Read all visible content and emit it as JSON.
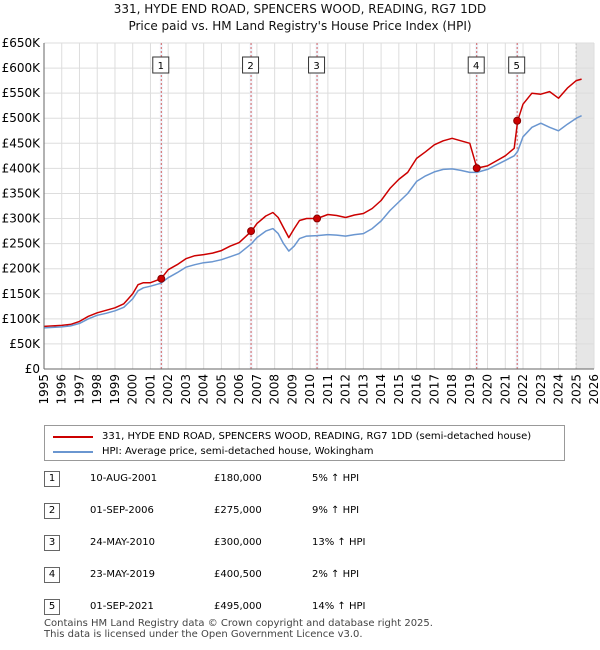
{
  "chart_data": {
    "type": "line",
    "title": "331, HYDE END ROAD, SPENCERS WOOD, READING, RG7 1DD",
    "subtitle": "Price paid vs. HM Land Registry's House Price Index (HPI)",
    "xlim": [
      1995,
      2026
    ],
    "ylim": [
      0,
      650000
    ],
    "x_ticks": [
      1995,
      1996,
      1997,
      1998,
      1999,
      2000,
      2001,
      2002,
      2003,
      2004,
      2005,
      2006,
      2007,
      2008,
      2009,
      2010,
      2011,
      2012,
      2013,
      2014,
      2015,
      2016,
      2017,
      2018,
      2019,
      2020,
      2021,
      2022,
      2023,
      2024,
      2025,
      2026
    ],
    "y_ticks": [
      0,
      50000,
      100000,
      150000,
      200000,
      250000,
      300000,
      350000,
      400000,
      450000,
      500000,
      550000,
      600000,
      650000
    ],
    "y_tick_labels": [
      "£0",
      "£50K",
      "£100K",
      "£150K",
      "£200K",
      "£250K",
      "£300K",
      "£350K",
      "£400K",
      "£450K",
      "£500K",
      "£550K",
      "£600K",
      "£650K"
    ],
    "series": [
      {
        "name": "331, HYDE END ROAD, SPENCERS WOOD, READING, RG7 1DD (semi-detached house)",
        "color": "#cc0000",
        "x": [
          1995,
          1995.5,
          1996,
          1996.5,
          1997,
          1997.5,
          1998,
          1998.5,
          1999,
          1999.5,
          2000,
          2000.3,
          2000.6,
          2001,
          2001.6,
          2002,
          2002.5,
          2003,
          2003.5,
          2004,
          2004.5,
          2005,
          2005.5,
          2006,
          2006.7,
          2007,
          2007.5,
          2007.9,
          2008.2,
          2008.5,
          2008.8,
          2009.1,
          2009.4,
          2009.8,
          2010.4,
          2011,
          2011.5,
          2012,
          2012.5,
          2013,
          2013.5,
          2014,
          2014.5,
          2015,
          2015.5,
          2016,
          2016.5,
          2017,
          2017.5,
          2018,
          2018.5,
          2019,
          2019.4,
          2020,
          2020.5,
          2021,
          2021.5,
          2021.7,
          2022,
          2022.5,
          2023,
          2023.5,
          2024,
          2024.5,
          2025,
          2025.3
        ],
        "y": [
          85000,
          86000,
          87000,
          89000,
          95000,
          105000,
          112000,
          117000,
          122000,
          130000,
          150000,
          168000,
          172000,
          172000,
          180000,
          198000,
          208000,
          220000,
          226000,
          228000,
          231000,
          236000,
          245000,
          252000,
          275000,
          290000,
          305000,
          312000,
          302000,
          282000,
          262000,
          280000,
          296000,
          300000,
          300000,
          308000,
          306000,
          302000,
          307000,
          310000,
          320000,
          336000,
          360000,
          378000,
          392000,
          420000,
          433000,
          447000,
          455000,
          460000,
          455000,
          450000,
          400500,
          405000,
          415000,
          425000,
          440000,
          495000,
          528000,
          550000,
          548000,
          553000,
          540000,
          560000,
          575000,
          578000
        ]
      },
      {
        "name": "HPI: Average price, semi-detached house, Wokingham",
        "color": "#6a96d0",
        "x": [
          1995,
          1995.5,
          1996,
          1996.5,
          1997,
          1997.5,
          1998,
          1998.5,
          1999,
          1999.5,
          2000,
          2000.3,
          2000.6,
          2001,
          2001.6,
          2002,
          2002.5,
          2003,
          2003.5,
          2004,
          2004.5,
          2005,
          2005.5,
          2006,
          2006.7,
          2007,
          2007.5,
          2007.9,
          2008.2,
          2008.5,
          2008.8,
          2009.1,
          2009.4,
          2009.8,
          2010.4,
          2011,
          2011.5,
          2012,
          2012.5,
          2013,
          2013.5,
          2014,
          2014.5,
          2015,
          2015.5,
          2016,
          2016.5,
          2017,
          2017.5,
          2018,
          2018.5,
          2019,
          2019.4,
          2020,
          2020.5,
          2021,
          2021.5,
          2021.7,
          2022,
          2022.5,
          2023,
          2023.5,
          2024,
          2024.5,
          2025,
          2025.3
        ],
        "y": [
          82000,
          83000,
          84000,
          86000,
          91000,
          100000,
          107000,
          111000,
          116000,
          123000,
          140000,
          156000,
          162000,
          165000,
          171000,
          182000,
          192000,
          203000,
          208000,
          212000,
          214000,
          218000,
          224000,
          230000,
          250000,
          262000,
          275000,
          280000,
          270000,
          250000,
          235000,
          245000,
          260000,
          265000,
          266000,
          268000,
          267000,
          265000,
          268000,
          270000,
          280000,
          295000,
          316000,
          333000,
          350000,
          374000,
          385000,
          393000,
          398000,
          399000,
          396000,
          392000,
          392000,
          398000,
          407000,
          416000,
          425000,
          434000,
          463000,
          482000,
          490000,
          482000,
          475000,
          488000,
          500000,
          505000
        ]
      }
    ],
    "sales": [
      {
        "num": "1",
        "x": 2001.61,
        "price": 180000
      },
      {
        "num": "2",
        "x": 2006.67,
        "price": 275000
      },
      {
        "num": "3",
        "x": 2010.39,
        "price": 300000
      },
      {
        "num": "4",
        "x": 2019.39,
        "price": 400500
      },
      {
        "num": "5",
        "x": 2021.67,
        "price": 495000
      }
    ],
    "future_shade_start": 2025.0
  },
  "legend": {
    "property_label": "331, HYDE END ROAD, SPENCERS WOOD, READING, RG7 1DD (semi-detached house)",
    "hpi_label": "HPI: Average price, semi-detached house, Wokingham",
    "property_color": "#cc0000",
    "hpi_color": "#6a96d0"
  },
  "table": [
    {
      "num": "1",
      "date": "10-AUG-2001",
      "price": "£180,000",
      "hpi": "5% ↑ HPI"
    },
    {
      "num": "2",
      "date": "01-SEP-2006",
      "price": "£275,000",
      "hpi": "9% ↑ HPI"
    },
    {
      "num": "3",
      "date": "24-MAY-2010",
      "price": "£300,000",
      "hpi": "13% ↑ HPI"
    },
    {
      "num": "4",
      "date": "23-MAY-2019",
      "price": "£400,500",
      "hpi": "2% ↑ HPI"
    },
    {
      "num": "5",
      "date": "01-SEP-2021",
      "price": "£495,000",
      "hpi": "14% ↑ HPI"
    }
  ],
  "footer": {
    "line1": "Contains HM Land Registry data © Crown copyright and database right 2025.",
    "line2": "This data is licensed under the Open Government Licence v3.0."
  }
}
